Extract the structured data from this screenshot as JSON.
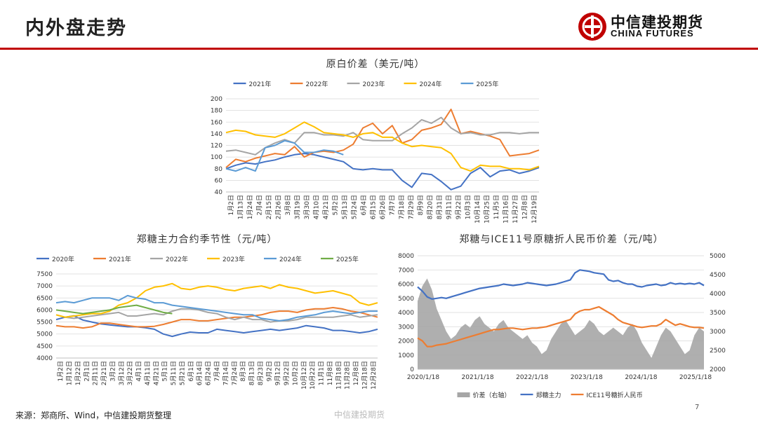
{
  "header": {
    "title": "内外盘走势"
  },
  "logo": {
    "name_cn": "中信建投期货",
    "name_en": "CHINA FUTURES"
  },
  "footer": {
    "source": "来源：郑商所、Wind，中信建投期货整理",
    "center": "中信建投期货",
    "page": "7"
  },
  "colors": {
    "c2020": "#4472c4",
    "c2021": "#ed7d31",
    "c2022": "#a5a5a5",
    "c2023": "#ffc000",
    "c2024": "#5b9bd5",
    "c2025": "#70ad47",
    "rule": "#c00000",
    "spread": "#a6a6a6"
  },
  "chart_data": [
    {
      "type": "line",
      "title": "原白价差（美元/吨）",
      "ylim": [
        40,
        200
      ],
      "yticks": [
        40,
        60,
        80,
        100,
        120,
        140,
        160,
        180,
        200
      ],
      "x_tick_labels": [
        "1月2日",
        "1月13日",
        "1月24日",
        "2月4日",
        "2月15日",
        "2月26日",
        "3月8日",
        "3月19日",
        "3月30日",
        "4月10日",
        "4月21日",
        "5月2日",
        "5月13日",
        "5月24日",
        "6月4日",
        "6月15日",
        "6月26日",
        "7月7日",
        "7月18日",
        "7月29日",
        "8月9日",
        "8月20日",
        "8月31日",
        "9月11日",
        "9月22日",
        "10月3日",
        "10月14日",
        "10月25日",
        "11月5日",
        "11月16日",
        "11月27日",
        "12月8日",
        "12月19日"
      ],
      "legend": "top",
      "grid": true,
      "series": [
        {
          "name": "2021年",
          "color": "#4472c4",
          "values": [
            80,
            86,
            90,
            88,
            92,
            95,
            100,
            104,
            106,
            104,
            100,
            96,
            92,
            80,
            78,
            80,
            78,
            78,
            60,
            48,
            72,
            70,
            58,
            44,
            50,
            72,
            82,
            66,
            76,
            78,
            72,
            76,
            82
          ]
        },
        {
          "name": "2022年",
          "color": "#ed7d31",
          "values": [
            82,
            96,
            92,
            98,
            102,
            106,
            104,
            118,
            100,
            108,
            110,
            108,
            112,
            122,
            150,
            158,
            140,
            154,
            124,
            130,
            146,
            150,
            156,
            182,
            140,
            144,
            140,
            136,
            130,
            102,
            104,
            106,
            112
          ]
        },
        {
          "name": "2023年",
          "color": "#a5a5a5",
          "values": [
            110,
            112,
            108,
            104,
            116,
            124,
            130,
            124,
            142,
            142,
            138,
            138,
            136,
            142,
            130,
            128,
            128,
            128,
            140,
            150,
            164,
            158,
            168,
            150,
            140,
            142,
            138,
            138,
            142,
            142,
            140,
            142,
            142
          ]
        },
        {
          "name": "2024年",
          "color": "#ffc000",
          "values": [
            142,
            146,
            144,
            138,
            136,
            134,
            140,
            150,
            160,
            152,
            142,
            140,
            138,
            134,
            140,
            142,
            134,
            134,
            124,
            118,
            120,
            118,
            116,
            106,
            82,
            76,
            86,
            84,
            84,
            80,
            80,
            78,
            84
          ]
        },
        {
          "name": "2025年",
          "color": "#5b9bd5",
          "values": [
            80,
            76,
            82,
            76,
            116,
            120,
            128,
            124,
            108,
            108,
            112,
            110,
            104
          ]
        }
      ]
    },
    {
      "type": "line",
      "title": "郑糖主力合约季节性（元/吨）",
      "ylim": [
        4000,
        7500
      ],
      "yticks": [
        4000,
        4500,
        5000,
        5500,
        6000,
        6500,
        7000,
        7500
      ],
      "x_tick_labels": [
        "1月2日",
        "1月12日",
        "1月22日",
        "2月1日",
        "2月11日",
        "2月21日",
        "3月2日",
        "3月12日",
        "3月22日",
        "4月1日",
        "4月11日",
        "4月21日",
        "5月1日",
        "5月11日",
        "5月21日",
        "6月1日",
        "6月14日",
        "6月24日",
        "7月4日",
        "7月14日",
        "7月24日",
        "8月3日",
        "8月13日",
        "8月23日",
        "9月2日",
        "9月12日",
        "9月22日",
        "10月2日",
        "10月12日",
        "10月22日",
        "11月1日",
        "11月8日",
        "11月18日",
        "11月28日",
        "12月8日",
        "12月18日",
        "12月28日"
      ],
      "legend": "top",
      "grid": true,
      "series": [
        {
          "name": "2020年",
          "color": "#4472c4",
          "values": [
            5600,
            5700,
            5760,
            5580,
            5500,
            5420,
            5380,
            5340,
            5300,
            5300,
            5260,
            5200,
            5000,
            4900,
            5000,
            5080,
            5050,
            5050,
            5200,
            5150,
            5100,
            5050,
            5100,
            5150,
            5200,
            5150,
            5200,
            5250,
            5350,
            5300,
            5250,
            5150,
            5150,
            5100,
            5050,
            5100,
            5200
          ]
        },
        {
          "name": "2021年",
          "color": "#ed7d31",
          "values": [
            5350,
            5300,
            5300,
            5250,
            5300,
            5450,
            5450,
            5400,
            5350,
            5300,
            5300,
            5320,
            5400,
            5500,
            5600,
            5600,
            5550,
            5550,
            5600,
            5650,
            5700,
            5700,
            5750,
            5800,
            5900,
            5950,
            5950,
            5900,
            6000,
            6050,
            6050,
            6100,
            6050,
            5950,
            5900,
            5800,
            5700
          ]
        },
        {
          "name": "2022年",
          "color": "#a5a5a5",
          "values": [
            5800,
            5700,
            5650,
            5700,
            5750,
            5800,
            5850,
            5900,
            5750,
            5750,
            5800,
            5850,
            5800,
            5950,
            6050,
            6050,
            6000,
            5900,
            5850,
            5700,
            5600,
            5700,
            5600,
            5600,
            5500,
            5550,
            5550,
            5600,
            5700,
            5700,
            5700,
            5700,
            5750,
            5800,
            5700,
            5750,
            5800
          ]
        },
        {
          "name": "2023年",
          "color": "#ffc000",
          "values": [
            5800,
            5700,
            5750,
            5800,
            5850,
            5850,
            5950,
            6200,
            6300,
            6500,
            6800,
            6950,
            7000,
            7100,
            6900,
            6850,
            6950,
            7000,
            6950,
            6850,
            6800,
            6900,
            6950,
            7000,
            6900,
            7050,
            6950,
            6900,
            6800,
            6700,
            6750,
            6800,
            6700,
            6600,
            6300,
            6200,
            6300
          ]
        },
        {
          "name": "2024年",
          "color": "#5b9bd5",
          "values": [
            6300,
            6350,
            6300,
            6400,
            6500,
            6500,
            6500,
            6400,
            6600,
            6500,
            6450,
            6300,
            6300,
            6200,
            6150,
            6100,
            6050,
            6000,
            5950,
            5900,
            5850,
            5800,
            5800,
            5650,
            5600,
            5550,
            5600,
            5700,
            5750,
            5800,
            5900,
            5950,
            5900,
            5850,
            5900,
            5950,
            5950
          ]
        },
        {
          "name": "2025年",
          "color": "#70ad47",
          "values": [
            6000,
            5950,
            5900,
            5850,
            5900,
            5950,
            6000,
            6100,
            6150,
            6200,
            6100,
            6000,
            5900,
            5850
          ]
        }
      ]
    },
    {
      "type": "line",
      "title": "郑糖与ICE11号原糖折人民币价差（元/吨）",
      "ylim_left": [
        0,
        8000
      ],
      "ylim_right": [
        2000,
        5000
      ],
      "yticks_left": [
        0,
        1000,
        2000,
        3000,
        4000,
        5000,
        6000,
        7000,
        8000
      ],
      "yticks_right": [
        2000,
        2500,
        3000,
        3500,
        4000,
        4500,
        5000
      ],
      "x_tick_labels": [
        "2020/1/18",
        "2021/1/18",
        "2022/1/18",
        "2023/1/18",
        "2024/1/18",
        "2025/1/18"
      ],
      "legend": "bottom",
      "grid": true,
      "series": [
        {
          "name": "价差（右轴）",
          "color": "#a6a6a6",
          "axis": "right",
          "kind": "area",
          "values": [
            3800,
            4200,
            4400,
            4100,
            3600,
            3300,
            3000,
            2800,
            2900,
            3100,
            3200,
            3100,
            3300,
            3400,
            3200,
            3100,
            3000,
            3200,
            3300,
            3100,
            3000,
            2900,
            2800,
            2900,
            2700,
            2600,
            2400,
            2500,
            2800,
            3000,
            3200,
            3300,
            3100,
            2900,
            3000,
            3100,
            3300,
            3200,
            3000,
            2900,
            3000,
            3100,
            3000,
            2900,
            3100,
            3200,
            3000,
            2700,
            2500,
            2300,
            2600,
            2900,
            3100,
            3000,
            2800,
            2600,
            2400,
            2500,
            2900,
            3100,
            3000
          ]
        },
        {
          "name": "郑糖主力",
          "color": "#4472c4",
          "axis": "left",
          "values": [
            5800,
            5500,
            5100,
            4950,
            5000,
            5050,
            5000,
            5100,
            5200,
            5300,
            5400,
            5500,
            5600,
            5700,
            5750,
            5800,
            5850,
            5900,
            6000,
            5950,
            5900,
            5950,
            6000,
            6100,
            6050,
            6000,
            5950,
            5900,
            5950,
            6000,
            6100,
            6200,
            6300,
            6800,
            7000,
            6950,
            6900,
            6800,
            6750,
            6700,
            6300,
            6200,
            6250,
            6100,
            6000,
            6000,
            5850,
            5800,
            5900,
            5950,
            6000,
            5900,
            5950,
            6100,
            6000,
            6050,
            6000,
            6050,
            6000,
            6100,
            5900
          ]
        },
        {
          "name": "ICE11号糖折人民币",
          "color": "#ed7d31",
          "axis": "left",
          "values": [
            2200,
            2000,
            1600,
            1600,
            1700,
            1750,
            1800,
            1900,
            2000,
            2100,
            2200,
            2300,
            2400,
            2500,
            2600,
            2700,
            2800,
            2800,
            2850,
            2900,
            2900,
            2850,
            2800,
            2850,
            2900,
            2900,
            2950,
            3000,
            3100,
            3200,
            3300,
            3400,
            3500,
            3900,
            4100,
            4200,
            4200,
            4300,
            4400,
            4200,
            4000,
            3800,
            3500,
            3300,
            3200,
            3100,
            3000,
            2950,
            3000,
            3050,
            3050,
            3200,
            3500,
            3300,
            3100,
            3200,
            3100,
            3000,
            2950,
            2950,
            2900
          ]
        }
      ]
    }
  ]
}
